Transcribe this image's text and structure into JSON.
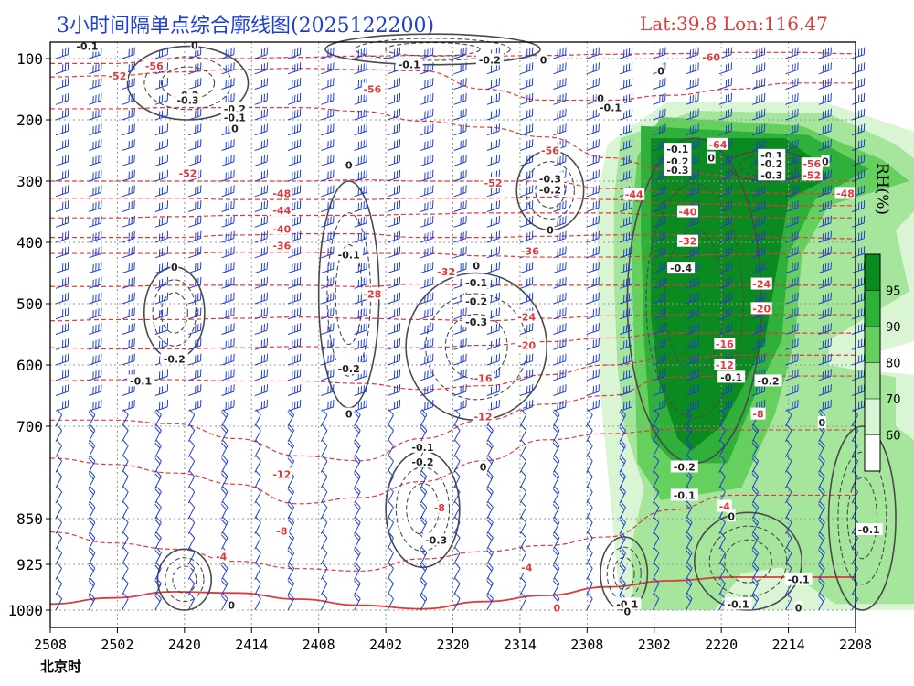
{
  "header": {
    "title": "3小时间隔单点综合廓线图(2025122200)",
    "latlon": "Lat:39.8  Lon:116.47"
  },
  "x_caption": "北京时",
  "colorbar": {
    "label": "RH(%)",
    "levels": [
      60,
      70,
      80,
      90,
      95
    ],
    "colors": [
      "#ffffff",
      "#d9f5d4",
      "#a6e59c",
      "#66d05e",
      "#2fb03a",
      "#0a8a1f"
    ]
  },
  "colors": {
    "temperature": "#e0393b",
    "vertical_velocity": "#4a4a4a",
    "wind_barb": "#1f3fd0"
  },
  "chart_data": {
    "type": "profile-time-section",
    "x_ticks": [
      "2508",
      "2502",
      "2420",
      "2414",
      "2408",
      "2402",
      "2320",
      "2314",
      "2308",
      "2302",
      "2220",
      "2214",
      "2208"
    ],
    "y_ticks": [
      100,
      200,
      300,
      400,
      500,
      600,
      700,
      850,
      925,
      1000
    ],
    "ylim": [
      1000,
      70
    ],
    "temperature_contours": [
      {
        "value": -60,
        "levels": [
          108,
          108,
          100,
          100,
          98,
          96,
          95,
          96,
          95,
          93,
          92,
          90,
          90,
          92
        ]
      },
      {
        "value": -56,
        "levels": [
          130,
          128,
          122,
          118,
          116,
          118,
          120,
          150,
          168,
          168,
          160,
          150,
          140,
          140
        ]
      },
      {
        "value": -52,
        "levels": [
          182,
          182,
          180,
          180,
          180,
          186,
          202,
          212,
          228,
          262,
          282,
          292,
          298,
          300
        ]
      },
      {
        "value": -48,
        "levels": [
          300,
          300,
          300,
          300,
          300,
          298,
          300,
          300,
          300,
          312,
          318,
          318,
          320,
          322
        ]
      },
      {
        "value": -44,
        "levels": [
          328,
          328,
          328,
          330,
          330,
          330,
          328,
          328,
          326,
          330,
          336,
          338,
          340,
          340
        ]
      },
      {
        "value": -40,
        "levels": [
          360,
          360,
          358,
          356,
          356,
          356,
          354,
          352,
          352,
          352,
          356,
          358,
          360,
          360
        ]
      },
      {
        "value": -36,
        "levels": [
          392,
          392,
          392,
          388,
          386,
          386,
          392,
          392,
          390,
          388,
          388,
          390,
          392,
          394
        ]
      },
      {
        "value": -32,
        "levels": [
          418,
          418,
          418,
          416,
          416,
          418,
          418,
          422,
          424,
          424,
          422,
          420,
          418,
          418
        ]
      },
      {
        "value": -28,
        "levels": [
          472,
          472,
          470,
          470,
          470,
          472,
          468,
          470,
          470,
          470,
          470,
          470,
          470,
          470
        ]
      },
      {
        "value": -24,
        "levels": [
          528,
          526,
          526,
          524,
          522,
          524,
          526,
          528,
          524,
          520,
          518,
          518,
          518,
          518
        ]
      },
      {
        "value": -20,
        "levels": [
          572,
          574,
          574,
          572,
          570,
          572,
          572,
          568,
          562,
          556,
          548,
          548,
          548,
          548
        ]
      },
      {
        "value": -16,
        "levels": [
          626,
          624,
          624,
          626,
          626,
          630,
          640,
          634,
          616,
          600,
          590,
          584,
          584,
          584
        ]
      },
      {
        "value": -12,
        "levels": [
          690,
          690,
          696,
          720,
          748,
          756,
          720,
          690,
          664,
          650,
          620,
          618,
          618,
          618
        ]
      },
      {
        "value": -8,
        "levels": [
          752,
          762,
          776,
          794,
          826,
          816,
          790,
          756,
          722,
          712,
          706,
          706,
          706,
          706
        ]
      },
      {
        "value": -4,
        "levels": [
          872,
          890,
          900,
          920,
          932,
          936,
          916,
          904,
          894,
          880,
          836,
          812,
          812,
          812
        ]
      },
      {
        "value": 0,
        "levels": [
          990,
          980,
          970,
          972,
          982,
          992,
          998,
          986,
          976,
          962,
          952,
          946,
          946,
          946
        ]
      }
    ],
    "temperature_labels": [
      {
        "text": "-60",
        "x": 9.85,
        "p": 98
      },
      {
        "text": "-56",
        "x": 1.55,
        "p": 112
      },
      {
        "text": "-56",
        "x": 4.8,
        "p": 150
      },
      {
        "text": "-56",
        "x": 7.45,
        "p": 250
      },
      {
        "text": "-52",
        "x": 1.0,
        "p": 128
      },
      {
        "text": "-52",
        "x": 2.05,
        "p": 287
      },
      {
        "text": "-52",
        "x": 6.6,
        "p": 303
      },
      {
        "text": "-52",
        "x": 11.35,
        "p": 290
      },
      {
        "text": "-56",
        "x": 11.35,
        "p": 272
      },
      {
        "text": "-64",
        "x": 9.95,
        "p": 240
      },
      {
        "text": "-48",
        "x": 3.45,
        "p": 320
      },
      {
        "text": "-48",
        "x": 11.85,
        "p": 320
      },
      {
        "text": "-44",
        "x": 3.45,
        "p": 348
      },
      {
        "text": "-44",
        "x": 8.7,
        "p": 322
      },
      {
        "text": "-40",
        "x": 3.45,
        "p": 378
      },
      {
        "text": "-40",
        "x": 9.5,
        "p": 350
      },
      {
        "text": "-36",
        "x": 3.45,
        "p": 405
      },
      {
        "text": "-36",
        "x": 7.15,
        "p": 414
      },
      {
        "text": "-32",
        "x": 9.5,
        "p": 398
      },
      {
        "text": "-32",
        "x": 5.9,
        "p": 448
      },
      {
        "text": "-28",
        "x": 4.8,
        "p": 484
      },
      {
        "text": "-24",
        "x": 7.1,
        "p": 522
      },
      {
        "text": "-24",
        "x": 10.6,
        "p": 468
      },
      {
        "text": "-20",
        "x": 7.1,
        "p": 568
      },
      {
        "text": "-20",
        "x": 10.6,
        "p": 508
      },
      {
        "text": "-16",
        "x": 6.45,
        "p": 622
      },
      {
        "text": "-16",
        "x": 10.05,
        "p": 566
      },
      {
        "text": "-12",
        "x": 6.45,
        "p": 684
      },
      {
        "text": "-12",
        "x": 10.05,
        "p": 600
      },
      {
        "text": "-12",
        "x": 3.45,
        "p": 778
      },
      {
        "text": "-8",
        "x": 3.45,
        "p": 870
      },
      {
        "text": "-8",
        "x": 5.8,
        "p": 832
      },
      {
        "text": "-8",
        "x": 10.55,
        "p": 680
      },
      {
        "text": "-4",
        "x": 2.55,
        "p": 912
      },
      {
        "text": "-4",
        "x": 7.1,
        "p": 930
      },
      {
        "text": "-4",
        "x": 10.05,
        "p": 830
      },
      {
        "text": "0",
        "x": 7.55,
        "p": 996
      }
    ],
    "vertical_velocity_labels": [
      {
        "text": "-0.1",
        "x": 0.55,
        "p": 80
      },
      {
        "text": "0",
        "x": 2.15,
        "p": 78
      },
      {
        "text": "-0.2",
        "x": 2.05,
        "p": 160
      },
      {
        "text": "-0.3",
        "x": 2.05,
        "p": 168
      },
      {
        "text": "-0.2",
        "x": 2.75,
        "p": 182
      },
      {
        "text": "-0.1",
        "x": 2.75,
        "p": 196
      },
      {
        "text": "0",
        "x": 2.75,
        "p": 214
      },
      {
        "text": "-0.1",
        "x": 5.35,
        "p": 110
      },
      {
        "text": "-0.2",
        "x": 6.55,
        "p": 102
      },
      {
        "text": "0",
        "x": 7.35,
        "p": 102
      },
      {
        "text": "0",
        "x": 8.2,
        "p": 165
      },
      {
        "text": "-0.1",
        "x": 8.35,
        "p": 180
      },
      {
        "text": "0",
        "x": 9.1,
        "p": 120
      },
      {
        "text": "-0.1",
        "x": 9.35,
        "p": 248
      },
      {
        "text": "-0.2",
        "x": 9.35,
        "p": 268
      },
      {
        "text": "-0.3",
        "x": 9.35,
        "p": 282
      },
      {
        "text": "0",
        "x": 9.85,
        "p": 262
      },
      {
        "text": "-0.1",
        "x": 10.75,
        "p": 258
      },
      {
        "text": "-0.2",
        "x": 10.75,
        "p": 272
      },
      {
        "text": "-0.3",
        "x": 10.75,
        "p": 290
      },
      {
        "text": "0",
        "x": 11.55,
        "p": 268
      },
      {
        "text": "-0.3",
        "x": 7.45,
        "p": 296
      },
      {
        "text": "-0.2",
        "x": 7.45,
        "p": 314
      },
      {
        "text": "0",
        "x": 7.45,
        "p": 380
      },
      {
        "text": "0",
        "x": 4.45,
        "p": 274
      },
      {
        "text": "-0.1",
        "x": 4.45,
        "p": 420
      },
      {
        "text": "-0.4",
        "x": 9.4,
        "p": 442
      },
      {
        "text": "0",
        "x": 1.85,
        "p": 440
      },
      {
        "text": "-0.2",
        "x": 1.85,
        "p": 590
      },
      {
        "text": "-0.1",
        "x": 1.35,
        "p": 626
      },
      {
        "text": "-0.2",
        "x": 4.45,
        "p": 606
      },
      {
        "text": "0",
        "x": 4.45,
        "p": 680
      },
      {
        "text": "0",
        "x": 6.35,
        "p": 438
      },
      {
        "text": "-0.1",
        "x": 6.35,
        "p": 466
      },
      {
        "text": "-0.2",
        "x": 6.35,
        "p": 496
      },
      {
        "text": "-0.3",
        "x": 6.35,
        "p": 530
      },
      {
        "text": "-0.1",
        "x": 10.15,
        "p": 620
      },
      {
        "text": "-0.2",
        "x": 10.7,
        "p": 626
      },
      {
        "text": "0",
        "x": 11.5,
        "p": 694
      },
      {
        "text": "-0.1",
        "x": 5.55,
        "p": 734
      },
      {
        "text": "-0.2",
        "x": 5.55,
        "p": 758
      },
      {
        "text": "0",
        "x": 6.45,
        "p": 766
      },
      {
        "text": "-0.2",
        "x": 9.45,
        "p": 766
      },
      {
        "text": "-0.1",
        "x": 9.45,
        "p": 812
      },
      {
        "text": "0",
        "x": 10.15,
        "p": 846
      },
      {
        "text": "-0.3",
        "x": 5.75,
        "p": 885
      },
      {
        "text": "-0.1",
        "x": 12.2,
        "p": 868
      },
      {
        "text": "0",
        "x": 2.7,
        "p": 992
      },
      {
        "text": "-0.1",
        "x": 8.6,
        "p": 990
      },
      {
        "text": "0",
        "x": 8.6,
        "p": 1002
      },
      {
        "text": "-0.1",
        "x": 10.25,
        "p": 990
      },
      {
        "text": "-0.1",
        "x": 11.15,
        "p": 950
      },
      {
        "text": "0",
        "x": 11.15,
        "p": 996
      }
    ],
    "rh_regions": [
      {
        "level": 95,
        "poly": [
          [
            8.95,
            230
          ],
          [
            10.95,
            230
          ],
          [
            11.2,
            250
          ],
          [
            11.4,
            265
          ],
          [
            11.6,
            295
          ],
          [
            11.0,
            330
          ],
          [
            10.85,
            430
          ],
          [
            10.65,
            560
          ],
          [
            10.35,
            630
          ],
          [
            10.0,
            700
          ],
          [
            9.55,
            740
          ],
          [
            9.35,
            720
          ],
          [
            9.05,
            620
          ],
          [
            8.95,
            520
          ],
          [
            8.95,
            380
          ]
        ]
      },
      {
        "level": 90,
        "poly": [
          [
            8.8,
            210
          ],
          [
            11.3,
            225
          ],
          [
            12.2,
            280
          ],
          [
            11.4,
            330
          ],
          [
            11.0,
            420
          ],
          [
            10.9,
            560
          ],
          [
            10.5,
            650
          ],
          [
            10.1,
            760
          ],
          [
            9.3,
            760
          ],
          [
            8.95,
            720
          ],
          [
            8.85,
            560
          ],
          [
            8.8,
            380
          ]
        ]
      },
      {
        "level": 80,
        "poly": [
          [
            9.1,
            195
          ],
          [
            11.2,
            210
          ],
          [
            12.4,
            265
          ],
          [
            12.8,
            300
          ],
          [
            11.6,
            340
          ],
          [
            11.2,
            420
          ],
          [
            11.1,
            560
          ],
          [
            10.8,
            680
          ],
          [
            10.3,
            800
          ],
          [
            9.1,
            820
          ],
          [
            8.75,
            760
          ],
          [
            8.7,
            560
          ],
          [
            8.65,
            380
          ],
          [
            8.75,
            260
          ]
        ]
      },
      {
        "level": 70,
        "poly": [
          [
            8.5,
            230
          ],
          [
            9.6,
            185
          ],
          [
            11.6,
            190
          ],
          [
            12.6,
            240
          ],
          [
            13.3,
            300
          ],
          [
            12.6,
            380
          ],
          [
            12.8,
            480
          ],
          [
            12.2,
            520
          ],
          [
            11.6,
            560
          ],
          [
            11.6,
            600
          ],
          [
            12.6,
            620
          ],
          [
            12.6,
            700
          ],
          [
            13.2,
            750
          ],
          [
            13.3,
            990
          ],
          [
            11.7,
            990
          ],
          [
            10.9,
            930
          ],
          [
            10.3,
            940
          ],
          [
            9.9,
            1000
          ],
          [
            8.7,
            1000
          ],
          [
            8.65,
            900
          ],
          [
            8.85,
            800
          ],
          [
            8.55,
            700
          ],
          [
            8.45,
            600
          ],
          [
            8.4,
            460
          ],
          [
            8.4,
            330
          ]
        ]
      },
      {
        "level": 60,
        "poly": [
          [
            8.3,
            240
          ],
          [
            9.2,
            170
          ],
          [
            11.5,
            170
          ],
          [
            12.9,
            220
          ],
          [
            13.4,
            260
          ],
          [
            13.4,
            420
          ],
          [
            13.3,
            520
          ],
          [
            12.9,
            560
          ],
          [
            12.3,
            580
          ],
          [
            12.3,
            610
          ],
          [
            13.2,
            620
          ],
          [
            13.4,
            750
          ],
          [
            13.4,
            1000
          ],
          [
            8.5,
            1000
          ],
          [
            8.35,
            820
          ],
          [
            8.2,
            650
          ],
          [
            8.15,
            460
          ],
          [
            8.15,
            330
          ]
        ]
      }
    ],
    "wind_barb_levels": [
      100,
      125,
      150,
      175,
      200,
      225,
      250,
      275,
      300,
      325,
      350,
      375,
      400,
      425,
      450,
      475,
      500,
      525,
      550,
      575,
      600,
      625,
      650,
      675,
      700,
      725,
      750,
      775,
      800,
      825,
      850,
      875,
      900,
      925,
      950,
      975,
      1000
    ]
  }
}
